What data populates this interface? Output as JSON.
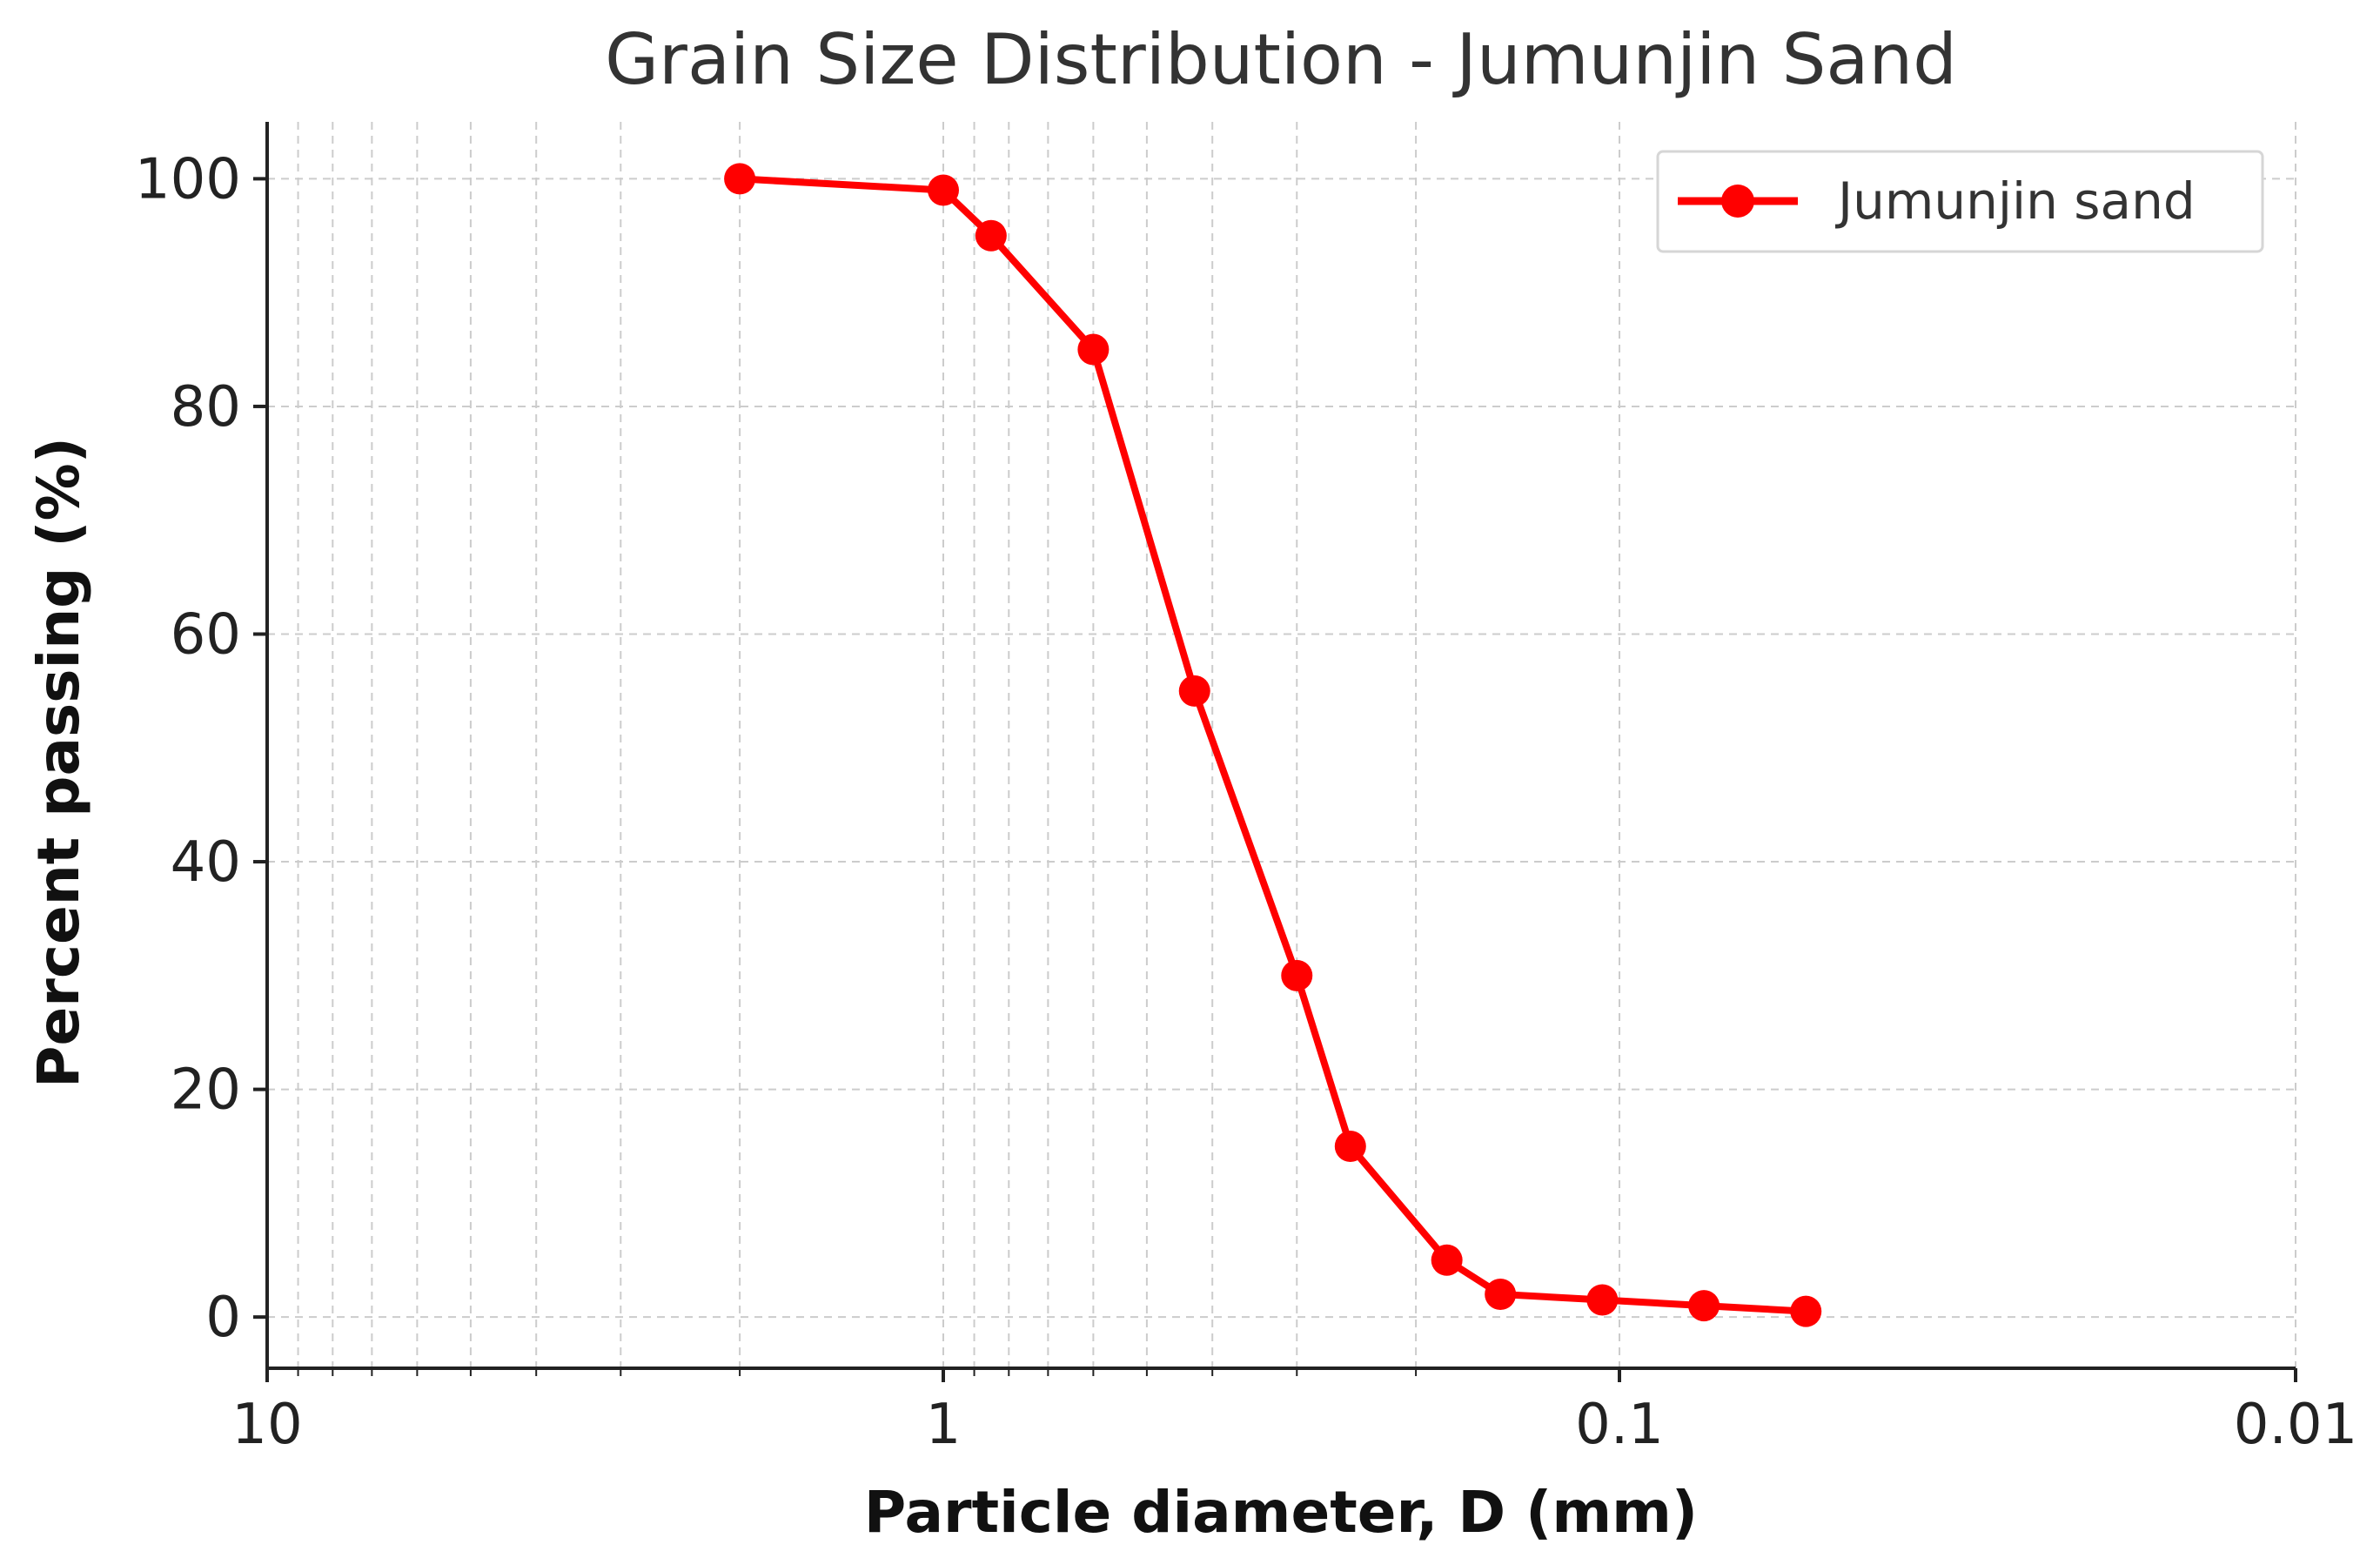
{
  "chart_data": {
    "type": "line",
    "title": "Grain Size Distribution - Jumunjin Sand",
    "xlabel": "Particle diameter, D (mm)",
    "ylabel": "Percent passing (%)",
    "x_scale": "log",
    "x_reversed": true,
    "xlim": [
      10,
      0.01
    ],
    "ylim": [
      -4.5,
      105
    ],
    "x_ticks": [
      {
        "value": 10,
        "label": "10"
      },
      {
        "value": 1,
        "label": "1"
      },
      {
        "value": 0.1,
        "label": "0.1"
      },
      {
        "value": 0.01,
        "label": "0.01"
      }
    ],
    "y_ticks": [
      {
        "value": 0,
        "label": "0"
      },
      {
        "value": 20,
        "label": "20"
      },
      {
        "value": 40,
        "label": "40"
      },
      {
        "value": 60,
        "label": "60"
      },
      {
        "value": 80,
        "label": "80"
      },
      {
        "value": 100,
        "label": "100"
      }
    ],
    "grid": true,
    "legend_position": "top-right",
    "series": [
      {
        "name": "Jumunjin sand",
        "color": "#ff0000",
        "marker": "circle",
        "x": [
          2.0,
          1.0,
          0.85,
          0.6,
          0.425,
          0.3,
          0.25,
          0.18,
          0.15,
          0.106,
          0.075,
          0.053
        ],
        "y": [
          100,
          99,
          95,
          85,
          55,
          30,
          15,
          5,
          2,
          1.5,
          1,
          0.5
        ]
      }
    ]
  }
}
